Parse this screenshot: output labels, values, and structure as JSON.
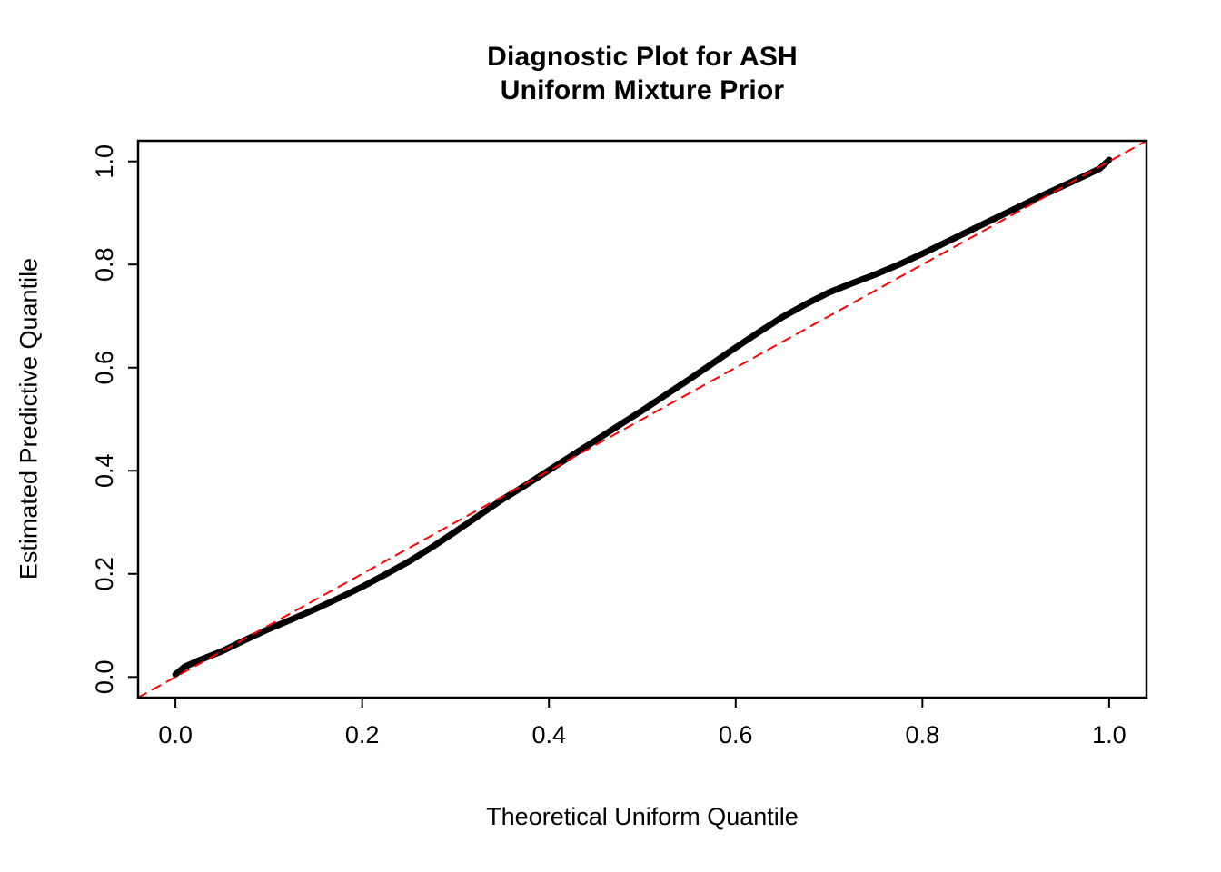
{
  "chart_data": {
    "type": "line",
    "title": "Diagnostic Plot for ASH\nUniform Mixture Prior",
    "title_lines": [
      "Diagnostic Plot for ASH",
      "Uniform Mixture Prior"
    ],
    "xlabel": "Theoretical Uniform Quantile",
    "ylabel": "Estimated Predictive Quantile",
    "xlim": [
      -0.04,
      1.04
    ],
    "ylim": [
      -0.04,
      1.04
    ],
    "x_ticks": [
      0.0,
      0.2,
      0.4,
      0.6,
      0.8,
      1.0
    ],
    "x_tick_labels": [
      "0.0",
      "0.2",
      "0.4",
      "0.6",
      "0.8",
      "1.0"
    ],
    "y_ticks": [
      0.0,
      0.2,
      0.4,
      0.6,
      0.8,
      1.0
    ],
    "y_tick_labels": [
      "0.0",
      "0.2",
      "0.4",
      "0.6",
      "0.8",
      "1.0"
    ],
    "grid": false,
    "legend": null,
    "series": [
      {
        "name": "estimated-predictive-quantile-curve",
        "color": "#000000",
        "style": "solid",
        "line_width": 7,
        "x": [
          0,
          0.01,
          0.025,
          0.05,
          0.075,
          0.1,
          0.125,
          0.15,
          0.175,
          0.2,
          0.225,
          0.25,
          0.275,
          0.3,
          0.325,
          0.35,
          0.375,
          0.4,
          0.425,
          0.45,
          0.475,
          0.5,
          0.525,
          0.55,
          0.575,
          0.6,
          0.625,
          0.65,
          0.675,
          0.7,
          0.725,
          0.75,
          0.775,
          0.8,
          0.825,
          0.85,
          0.875,
          0.9,
          0.925,
          0.95,
          0.975,
          0.99,
          1.0
        ],
        "y": [
          0.005,
          0.02,
          0.032,
          0.05,
          0.072,
          0.093,
          0.112,
          0.132,
          0.153,
          0.175,
          0.199,
          0.224,
          0.252,
          0.282,
          0.313,
          0.344,
          0.372,
          0.401,
          0.43,
          0.459,
          0.488,
          0.517,
          0.547,
          0.577,
          0.608,
          0.639,
          0.669,
          0.698,
          0.723,
          0.746,
          0.764,
          0.781,
          0.8,
          0.821,
          0.843,
          0.865,
          0.887,
          0.909,
          0.931,
          0.952,
          0.973,
          0.986,
          1.003
        ]
      },
      {
        "name": "reference-line-y-equals-x",
        "color": "#FF0000",
        "style": "dashed",
        "line_width": 2,
        "x": [
          -0.04,
          1.04
        ],
        "y": [
          -0.04,
          1.04
        ]
      }
    ]
  }
}
